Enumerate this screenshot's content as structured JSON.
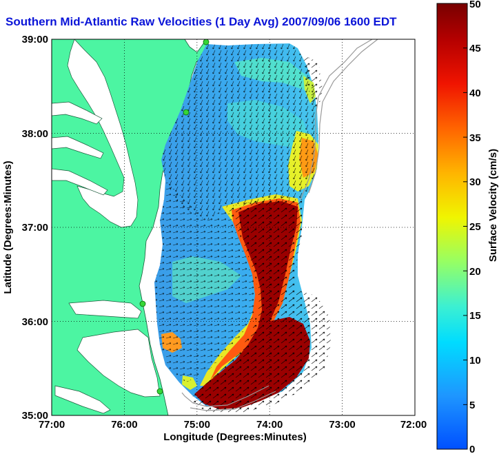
{
  "title": "Southern Mid-Atlantic Raw Velocities (1 Day Avg) 2007/09/06 1600 EDT",
  "map": {
    "xlabel": "Longitude (Degrees:Minutes)",
    "ylabel": "Latitude (Degrees:Minutes)",
    "x_ticks": [
      "77:00",
      "76:00",
      "75:00",
      "74:00",
      "73:00",
      "72:00"
    ],
    "y_ticks": [
      "39:00",
      "38:00",
      "37:00",
      "36:00",
      "35:00"
    ],
    "xlim": [
      -77,
      -72
    ],
    "ylim": [
      35,
      39
    ],
    "land_color": "#4cf5a2",
    "gridlines": true,
    "station_color": "#36d636"
  },
  "colorbar": {
    "label": "Surface Velocity (cm/s)",
    "ticks": [
      "0",
      "5",
      "10",
      "15",
      "20",
      "25",
      "30",
      "35",
      "40",
      "45",
      "50"
    ],
    "min": 0,
    "max": 50,
    "colormap": "jet"
  }
}
